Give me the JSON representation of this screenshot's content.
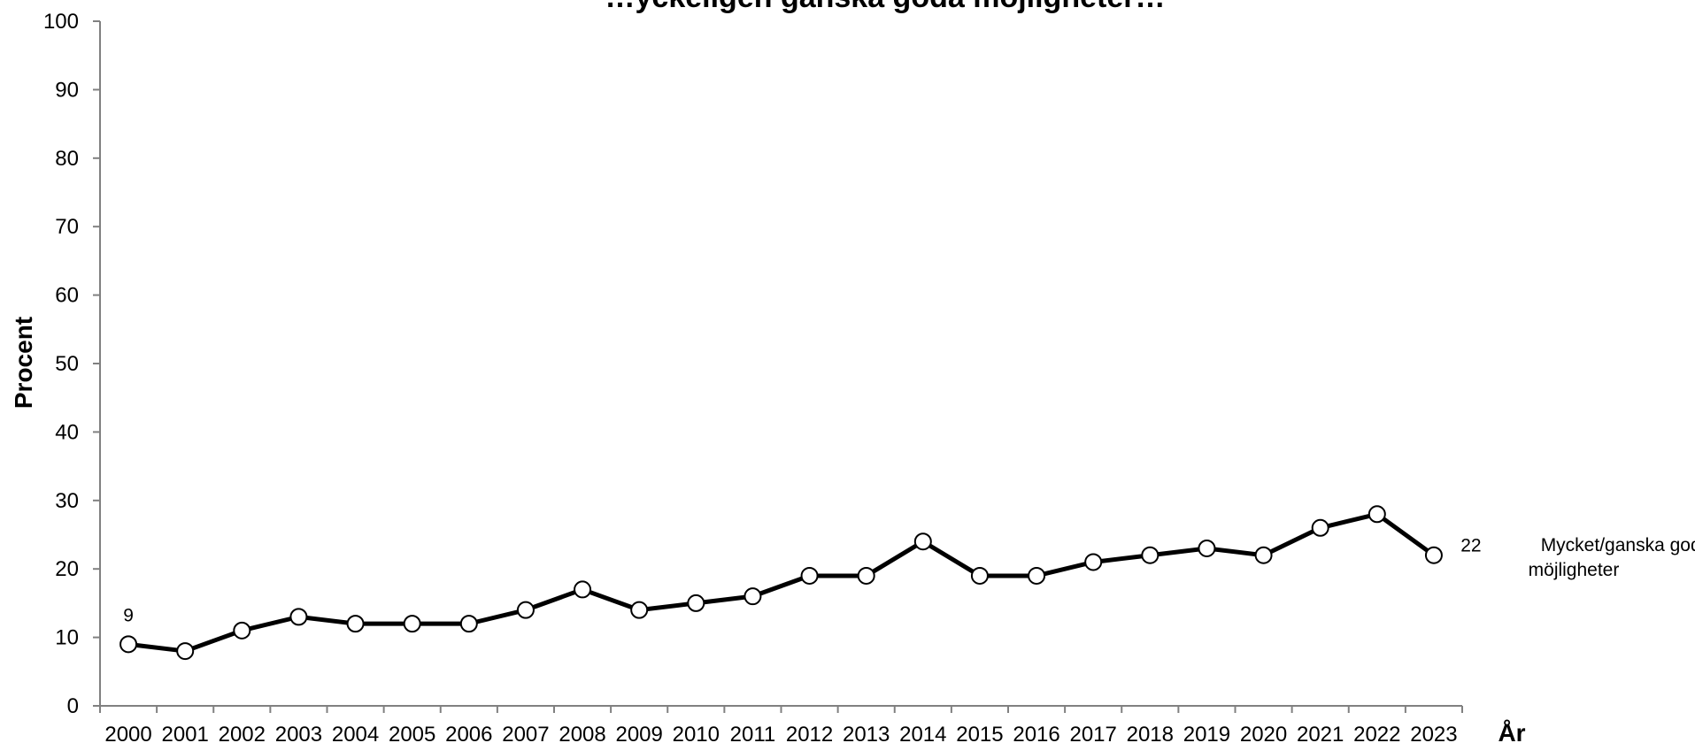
{
  "chart_data": {
    "type": "line",
    "title": "…yckeligen ganska goda möjligheter…",
    "xlabel": "År",
    "ylabel": "Procent",
    "ylim": [
      0,
      100
    ],
    "y_ticks": [
      "0",
      "10",
      "20",
      "30",
      "40",
      "50",
      "60",
      "70",
      "80",
      "90",
      "100"
    ],
    "categories": [
      "2000",
      "2001",
      "2002",
      "2003",
      "2004",
      "2005",
      "2006",
      "2007",
      "2008",
      "2009",
      "2010",
      "2011",
      "2012",
      "2013",
      "2014",
      "2015",
      "2016",
      "2017",
      "2018",
      "2019",
      "2020",
      "2021",
      "2022",
      "2023"
    ],
    "series": [
      {
        "name_line1": "Mycket/ganska goda",
        "name_line2": "möjligheter",
        "values": [
          9,
          8,
          11,
          13,
          12,
          12,
          12,
          14,
          17,
          14,
          15,
          16,
          19,
          19,
          24,
          19,
          19,
          21,
          22,
          23,
          22,
          26,
          28,
          22
        ]
      }
    ],
    "data_labels": {
      "first": "9",
      "last": "22"
    },
    "grid": false,
    "legend": "none",
    "line_color": "#000000",
    "marker_fill": "#ffffff"
  }
}
